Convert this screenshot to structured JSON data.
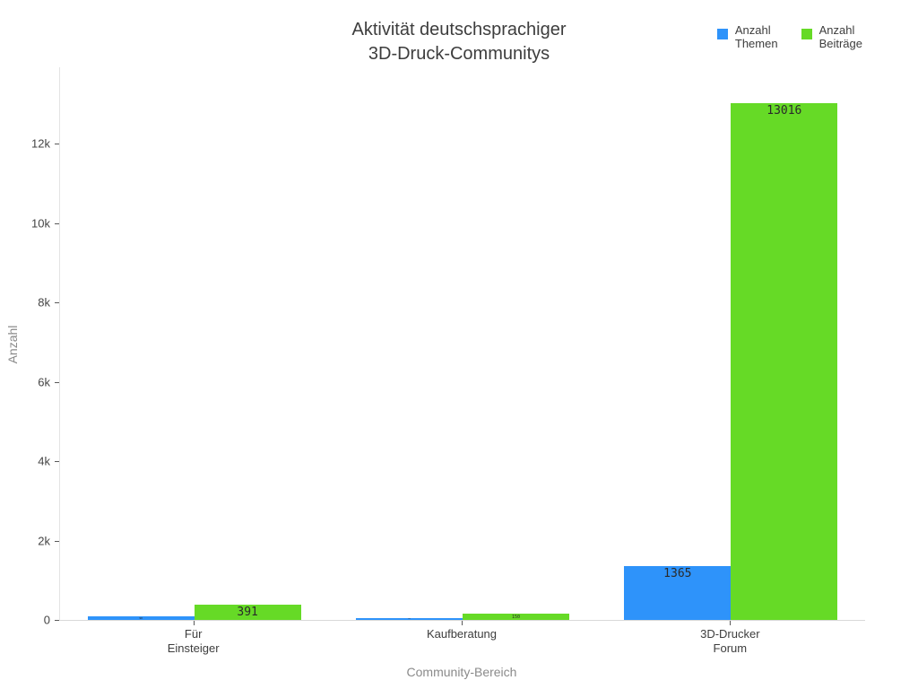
{
  "title": {
    "line1": "Aktivität deutschsprachiger",
    "line2": "3D-Druck-Communitys"
  },
  "legend": {
    "items": [
      {
        "name": "Anzahl Themen",
        "line1": "Anzahl",
        "line2": "Themen",
        "color": "#2E93FA"
      },
      {
        "name": "Anzahl Beiträge",
        "line1": "Anzahl",
        "line2": "Beiträge",
        "color": "#66DA26"
      }
    ]
  },
  "axes": {
    "x_title": "Community-Bereich",
    "y_title": "Anzahl"
  },
  "colors": {
    "background": "#ffffff",
    "series_blue": "#2E93FA",
    "series_green": "#66DA26",
    "axis_line": "#d9d9d9",
    "tick_text": "#444444",
    "title_text": "#3d3d3d",
    "axis_title_text": "#8a8a8a"
  },
  "chart_data": {
    "type": "bar",
    "title": "Aktivität deutschsprachiger 3D-Druck-Communitys",
    "categories": [
      "Für Einsteiger",
      "Kaufberatung",
      "3D-Drucker Forum"
    ],
    "category_label_lines": [
      [
        "Für",
        "Einsteiger"
      ],
      [
        "Kaufberatung"
      ],
      [
        "3D-Drucker",
        "Forum"
      ]
    ],
    "series": [
      {
        "name": "Anzahl Themen",
        "color": "#2E93FA",
        "values": [
          90,
          50,
          1365
        ],
        "value_labels": [
          "90",
          "50",
          "1365"
        ]
      },
      {
        "name": "Anzahl Beiträge",
        "color": "#66DA26",
        "values": [
          391,
          150,
          13016
        ],
        "value_labels": [
          "391",
          "150",
          "13016"
        ]
      }
    ],
    "xlabel": "Community-Bereich",
    "ylabel": "Anzahl",
    "ylim": [
      0,
      13700
    ],
    "yticks": {
      "values": [
        0,
        2000,
        4000,
        6000,
        8000,
        10000,
        12000
      ],
      "labels": [
        "0",
        "2k",
        "4k",
        "6k",
        "8k",
        "10k",
        "12k"
      ]
    },
    "legend_position": "top-right",
    "grid": false,
    "barmode": "group"
  }
}
